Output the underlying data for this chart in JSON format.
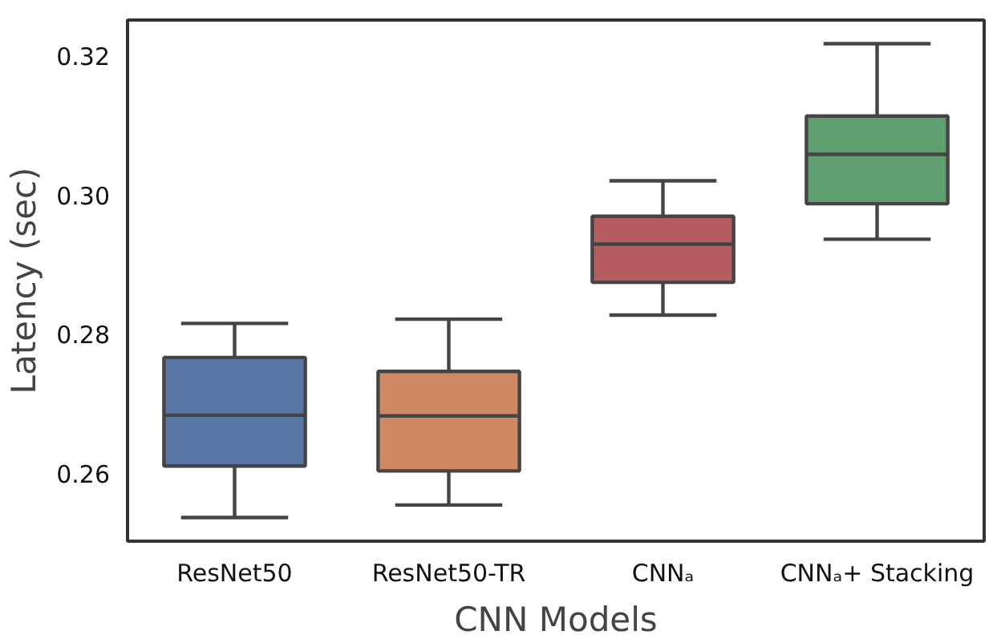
{
  "chart_data": {
    "type": "box",
    "xlabel": "CNN Models",
    "ylabel": "Latency (sec)",
    "categories": [
      "ResNet50",
      "ResNet50-TR",
      "CNNₐ",
      "CNNₐ+ Stacking"
    ],
    "colors": [
      "#5975a4",
      "#cc8963",
      "#b55d60",
      "#5f9e6e"
    ],
    "boxes": [
      {
        "low": 0.2537,
        "q1": 0.2611,
        "median": 0.2684,
        "q3": 0.2767,
        "high": 0.2816
      },
      {
        "low": 0.2555,
        "q1": 0.2604,
        "median": 0.2683,
        "q3": 0.2747,
        "high": 0.2822
      },
      {
        "low": 0.2828,
        "q1": 0.2875,
        "median": 0.293,
        "q3": 0.297,
        "high": 0.3021
      },
      {
        "low": 0.2937,
        "q1": 0.2988,
        "median": 0.3059,
        "q3": 0.3114,
        "high": 0.3218
      }
    ],
    "ylim": [
      0.2503,
      0.3252
    ],
    "yticks": [
      {
        "value": 0.26,
        "label": "0.26"
      },
      {
        "value": 0.28,
        "label": "0.28"
      },
      {
        "value": 0.3,
        "label": "0.30"
      },
      {
        "value": 0.32,
        "label": "0.32"
      }
    ],
    "grid": false
  }
}
